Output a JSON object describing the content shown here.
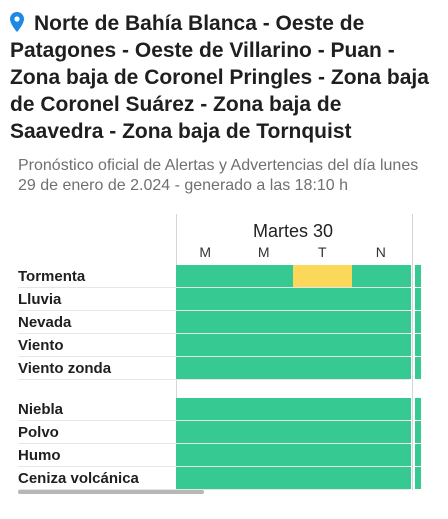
{
  "header": {
    "region": "Norte de Bahía Blanca - Oeste de Patagones - Oeste de Villarino - Puan - Zona baja de Coronel Pringles - Zona baja de Coronel Suárez - Zona baja de Saavedra - Zona baja de Tornquist",
    "subtitle": "Pronóstico oficial de Alertas y Advertencias del día lunes 29 de enero de 2.024 - generado a las 18:10 h",
    "icon": "location-pin-icon",
    "accent_color": "#1e88e5"
  },
  "table": {
    "day": "Martes 30",
    "periods": [
      "M",
      "M",
      "T",
      "N"
    ],
    "colors": {
      "no_alert": "#36c991",
      "yellow": "#fbd85a"
    },
    "rows_group1": [
      {
        "label": "Tormenta",
        "levels": [
          "none",
          "none",
          "yellow",
          "none"
        ]
      },
      {
        "label": "Lluvia",
        "levels": [
          "none",
          "none",
          "none",
          "none"
        ]
      },
      {
        "label": "Nevada",
        "levels": [
          "none",
          "none",
          "none",
          "none"
        ]
      },
      {
        "label": "Viento",
        "levels": [
          "none",
          "none",
          "none",
          "none"
        ]
      },
      {
        "label": "Viento zonda",
        "levels": [
          "none",
          "none",
          "none",
          "none"
        ]
      }
    ],
    "rows_group2": [
      {
        "label": "Niebla",
        "levels": [
          "none",
          "none",
          "none",
          "none"
        ]
      },
      {
        "label": "Polvo",
        "levels": [
          "none",
          "none",
          "none",
          "none"
        ]
      },
      {
        "label": "Humo",
        "levels": [
          "none",
          "none",
          "none",
          "none"
        ]
      },
      {
        "label": "Ceniza volcánica",
        "levels": [
          "none",
          "none",
          "none",
          "none"
        ]
      }
    ]
  }
}
